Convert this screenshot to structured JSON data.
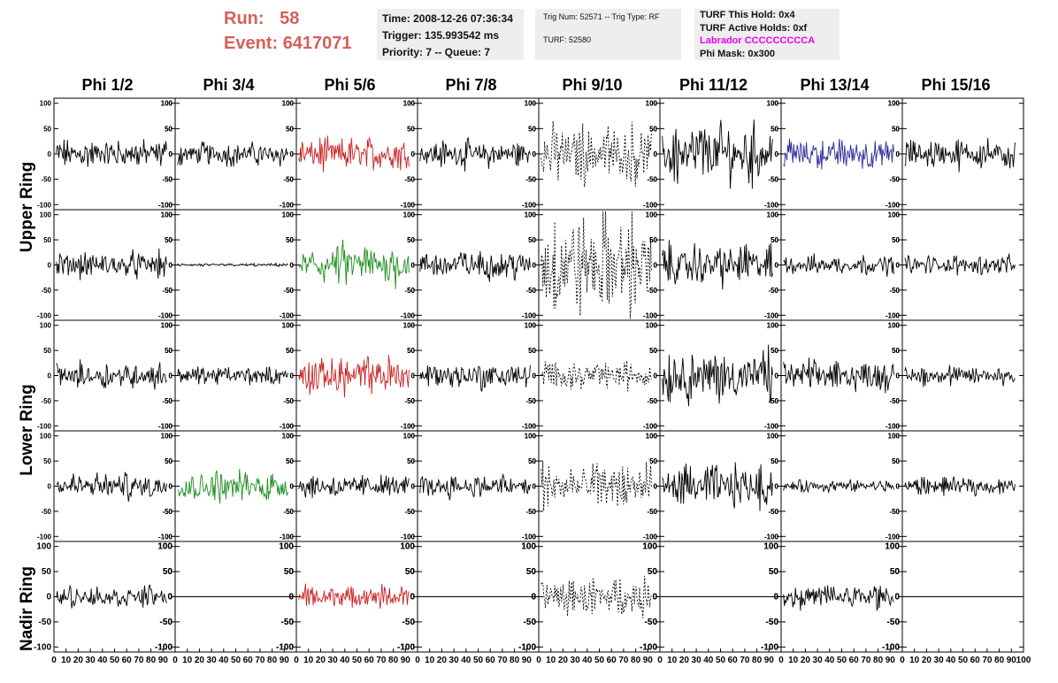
{
  "header": {
    "run_label": "Run:",
    "run_value": "58",
    "event_label": "Event:",
    "event_value": "6417071",
    "time_text": "Time: 2008-12-26 07:36:34",
    "trigger_text": "Trigger: 135.993542 ms",
    "priority_text": "Priority: 7 -- Queue: 7",
    "trig_num_text": "Trig Num: 52571 -- Trig Type: RF",
    "turf_text": "TURF: 52580",
    "turf_hold_text": "TURF This Hold: 0x4",
    "turf_active_text": "TURF Active Holds: 0xf",
    "labrador_text": "Labrador CCCCCCCCCA",
    "phi_mask_text": "Phi Mask: 0x300",
    "labrador_color": "#ee00ee",
    "run_color": "#d75f5a"
  },
  "columns": [
    "Phi 1/2",
    "Phi 3/4",
    "Phi 5/6",
    "Phi 7/8",
    "Phi 9/10",
    "Phi 11/12",
    "Phi 13/14",
    "Phi 15/16"
  ],
  "rows": [
    "Upper Ring",
    "Upper Ring",
    "Lower Ring",
    "Lower Ring",
    "Nadir Ring"
  ],
  "chart_data": {
    "type": "line",
    "xlim": [
      0,
      100
    ],
    "ylim": [
      -110,
      110
    ],
    "ytick_labels": [
      "100",
      "50",
      "0",
      "-50",
      "-100"
    ],
    "xtick_labels": [
      "0",
      "10",
      "20",
      "30",
      "40",
      "50",
      "60",
      "70",
      "80",
      "90",
      "100"
    ],
    "grid": false,
    "colors": {
      "black": "#000000",
      "red": "#cc2222",
      "green": "#1f8f1f",
      "blue": "#2a2a9a"
    },
    "panel_amplitudes": [
      [
        28,
        22,
        32,
        26,
        55,
        60,
        30,
        28
      ],
      [
        25,
        3,
        40,
        30,
        95,
        40,
        18,
        18
      ],
      [
        25,
        18,
        38,
        26,
        28,
        50,
        30,
        20
      ],
      [
        25,
        30,
        22,
        22,
        45,
        40,
        12,
        18
      ],
      [
        20,
        0,
        22,
        0,
        35,
        0,
        25,
        0
      ]
    ],
    "panel_colors": [
      [
        "black",
        "black",
        "red",
        "black",
        "dashed",
        "black",
        "blue",
        "black"
      ],
      [
        "black",
        "black",
        "green",
        "black",
        "dashed",
        "black",
        "black",
        "black"
      ],
      [
        "black",
        "black",
        "red",
        "black",
        "dashed",
        "black",
        "black",
        "black"
      ],
      [
        "black",
        "green",
        "black",
        "black",
        "dashed",
        "black",
        "black",
        "black"
      ],
      [
        "black",
        "black",
        "red",
        "black",
        "dashed",
        "black",
        "black",
        "black"
      ]
    ]
  }
}
